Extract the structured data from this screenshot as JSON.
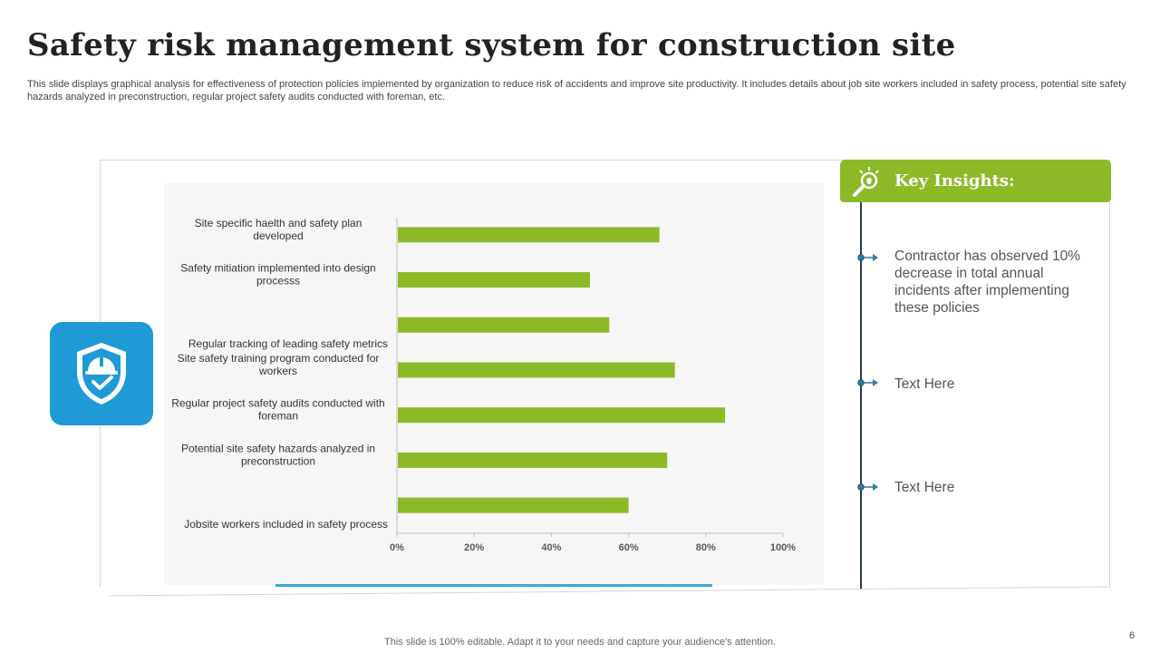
{
  "slide": {
    "title": "Safety risk management system for construction site",
    "subtitle": "This slide displays graphical analysis for effectiveness of protection policies implemented by organization to reduce risk of accidents and improve site productivity. It includes details about job site workers included in safety process, potential site safety hazards analyzed in preconstruction, regular project safety audits conducted with foreman, etc.",
    "footer": "This slide is 100% editable. Adapt it to your needs and capture your audience's attention.",
    "page_number": "6"
  },
  "colors": {
    "bar": "#8db929",
    "accent_blue": "#1f9ad6",
    "header_green": "#8db929",
    "timeline": "#2a3b4c"
  },
  "icons": {
    "tile": "safety-shield-helmet-icon",
    "insights": "lightbulb-magnifier-icon",
    "marker": "pin-marker-icon"
  },
  "insights": {
    "header": "Key Insights:",
    "items": [
      "Contractor has observed 10% decrease in total annual incidents after implementing these policies",
      "Text Here",
      "Text Here"
    ]
  },
  "chart_data": {
    "type": "bar",
    "orientation": "horizontal",
    "categories": [
      [
        "Site specific haelth and safety plan",
        "developed"
      ],
      [
        "Safety mitiation implemented into design",
        "processs"
      ],
      [
        "Regular tracking of leading safety metrics"
      ],
      [
        "Site safety training program conducted for",
        "workers"
      ],
      [
        "Regular project safety audits conducted with",
        "foreman"
      ],
      [
        "Potential site safety hazards analyzed in",
        "preconstruction"
      ],
      [
        "Jobsite workers included in safety process"
      ]
    ],
    "values": [
      68,
      50,
      55,
      72,
      85,
      70,
      60
    ],
    "xlim": [
      0,
      100
    ],
    "xticks": [
      0,
      20,
      40,
      60,
      80,
      100
    ],
    "xtick_labels": [
      "0%",
      "20%",
      "40%",
      "60%",
      "80%",
      "100%"
    ],
    "title": "",
    "xlabel": "",
    "ylabel": "",
    "grid": false,
    "legend": "none"
  }
}
